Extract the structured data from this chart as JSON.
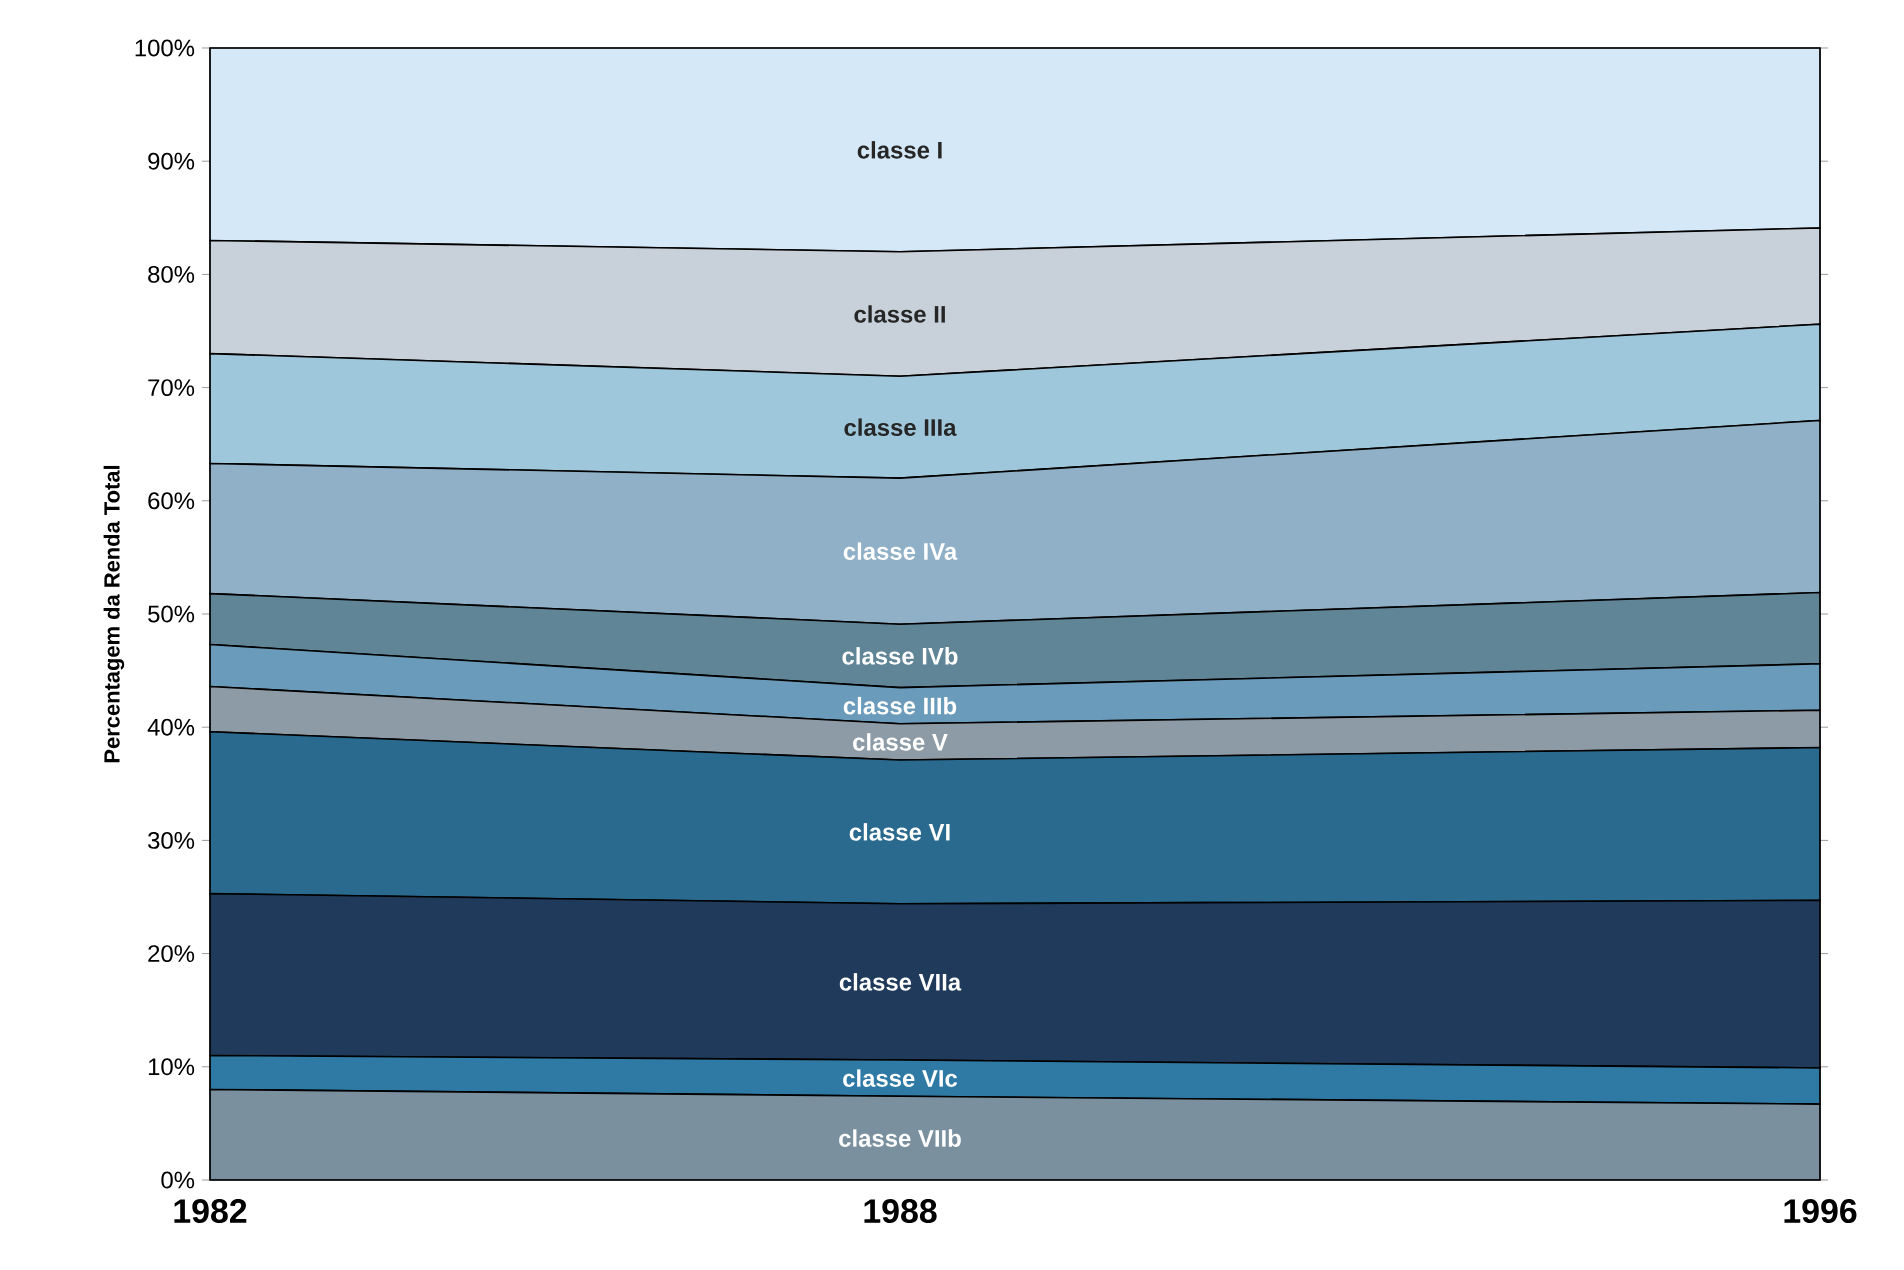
{
  "chart_data": {
    "type": "area",
    "stacked": true,
    "ylabel": "Percentagem da Renda Total",
    "x": [
      1982,
      1988,
      1996
    ],
    "xlim": [
      1982,
      1996
    ],
    "xticks": [
      1982,
      1988,
      1996
    ],
    "ylim": [
      0,
      100
    ],
    "yticks": [
      {
        "value": 0,
        "label": "0%"
      },
      {
        "value": 10,
        "label": "10%"
      },
      {
        "value": 20,
        "label": "20%"
      },
      {
        "value": 30,
        "label": "30%"
      },
      {
        "value": 40,
        "label": "40%"
      },
      {
        "value": 50,
        "label": "50%"
      },
      {
        "value": 60,
        "label": "60%"
      },
      {
        "value": 70,
        "label": "70%"
      },
      {
        "value": 80,
        "label": "80%"
      },
      {
        "value": 90,
        "label": "90%"
      },
      {
        "value": 100,
        "label": "100%"
      }
    ],
    "series": [
      {
        "name": "classe VIIb",
        "color": "#7a909f",
        "values": [
          8,
          7.4,
          6.7
        ]
      },
      {
        "name": "classe VIc",
        "color": "#2f7aa5",
        "values": [
          3,
          3.2,
          3.2
        ]
      },
      {
        "name": "classe VIIa",
        "color": "#1f3a5a",
        "values": [
          14.3,
          13.8,
          14.8
        ]
      },
      {
        "name": "classe VI",
        "color": "#2a6a8e",
        "values": [
          14.3,
          12.7,
          13.5
        ]
      },
      {
        "name": "classe V",
        "color": "#8d9ba6",
        "values": [
          4,
          3.2,
          3.3
        ]
      },
      {
        "name": "classe IIIb",
        "color": "#6a9bbb",
        "values": [
          3.7,
          3.2,
          4.1
        ]
      },
      {
        "name": "classe IVb",
        "color": "#5f8596",
        "values": [
          4.5,
          5.6,
          6.3
        ]
      },
      {
        "name": "classe IVa",
        "color": "#8fb0c6",
        "values": [
          11.5,
          12.9,
          15.2
        ]
      },
      {
        "name": "classe IIIa",
        "color": "#9fc7dc",
        "values": [
          9.7,
          9,
          8.5
        ]
      },
      {
        "name": "classe II",
        "color": "#c8d0da",
        "values": [
          10,
          11,
          8.5
        ]
      },
      {
        "name": "classe I",
        "color": "#d4e8f7",
        "values": [
          17,
          18,
          15.9
        ]
      }
    ]
  }
}
